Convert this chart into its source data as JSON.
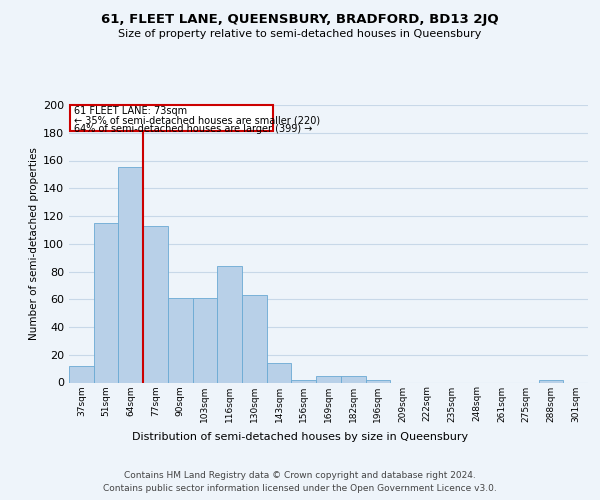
{
  "title1": "61, FLEET LANE, QUEENSBURY, BRADFORD, BD13 2JQ",
  "title2": "Size of property relative to semi-detached houses in Queensbury",
  "xlabel": "Distribution of semi-detached houses by size in Queensbury",
  "ylabel": "Number of semi-detached properties",
  "footer1": "Contains HM Land Registry data © Crown copyright and database right 2024.",
  "footer2": "Contains public sector information licensed under the Open Government Licence v3.0.",
  "property_label": "61 FLEET LANE: 73sqm",
  "pct_smaller": 35,
  "count_smaller": 220,
  "pct_larger": 64,
  "count_larger": 399,
  "bar_labels": [
    "37sqm",
    "51sqm",
    "64sqm",
    "77sqm",
    "90sqm",
    "103sqm",
    "116sqm",
    "130sqm",
    "143sqm",
    "156sqm",
    "169sqm",
    "182sqm",
    "196sqm",
    "209sqm",
    "222sqm",
    "235sqm",
    "248sqm",
    "261sqm",
    "275sqm",
    "288sqm",
    "301sqm"
  ],
  "bar_values": [
    12,
    115,
    155,
    113,
    61,
    61,
    84,
    63,
    14,
    2,
    5,
    5,
    2,
    0,
    0,
    0,
    0,
    0,
    0,
    2,
    0
  ],
  "bar_color": "#b8d0e8",
  "bar_edge_color": "#6aaad4",
  "vline_x_index": 2.5,
  "vline_color": "#cc0000",
  "annotation_box_color": "#cc0000",
  "ylim": [
    0,
    200
  ],
  "yticks": [
    0,
    20,
    40,
    60,
    80,
    100,
    120,
    140,
    160,
    180,
    200
  ],
  "grid_color": "#c8d8e8",
  "bg_color": "#eef4fa",
  "plot_bg_color": "#eef4fa"
}
